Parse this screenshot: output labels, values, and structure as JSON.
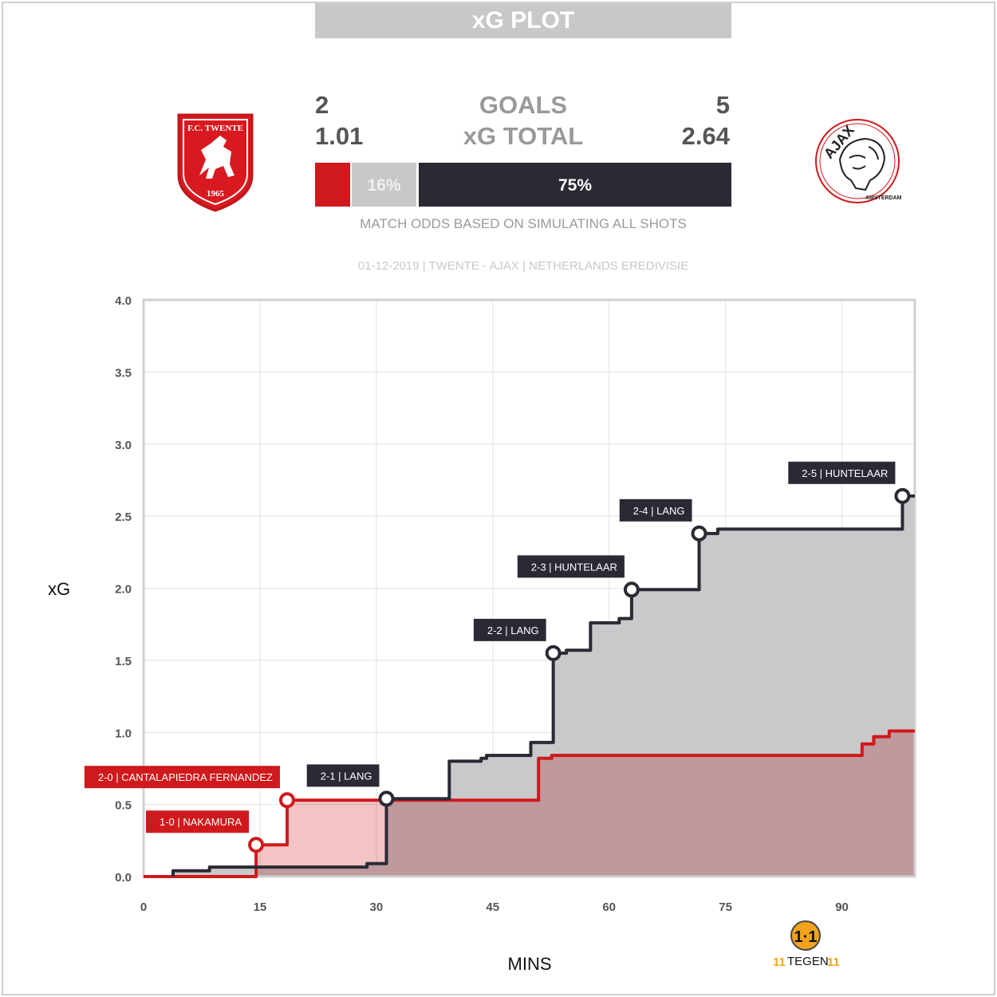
{
  "title": "xG PLOT",
  "home": {
    "name": "TWENTE",
    "goals": "2",
    "xg_total": "1.01",
    "win_pct": 9,
    "color": "#d0191c",
    "logo_text": "F.C. TWENTE 1965"
  },
  "away": {
    "name": "AJAX",
    "goals": "5",
    "xg_total": "2.64",
    "win_pct_label": "75%",
    "win_pct": 75,
    "color": "#2a2a35",
    "logo_text": "AJAX AMSTERDAM"
  },
  "draw": {
    "pct_label": "16%",
    "pct": 16,
    "color": "#c8c8c8"
  },
  "labels": {
    "goals": "GOALS",
    "xg_total": "xG TOTAL",
    "odds_note": "MATCH ODDS BASED ON SIMULATING ALL SHOTS",
    "match_info": "01-12-2019 | TWENTE - AJAX | NETHERLANDS EREDIVISIE"
  },
  "brand": {
    "name": "11TEGEN11",
    "mark": "11"
  },
  "chart_data": {
    "type": "line",
    "step": true,
    "xlabel": "MINS",
    "ylabel": "xG",
    "xlim": [
      0,
      99.4
    ],
    "ylim": [
      0,
      4.0
    ],
    "xticks": [
      0,
      15,
      30,
      45,
      60,
      75,
      90
    ],
    "yticks": [
      "0.0",
      "0.5",
      "1.0",
      "1.5",
      "2.0",
      "2.5",
      "3.0",
      "3.5",
      "4.0"
    ],
    "grid": true,
    "series": [
      {
        "name": "TWENTE",
        "color": "#d0191c",
        "end": 99.4,
        "points": [
          [
            0,
            0
          ],
          [
            14.5,
            0.22
          ],
          [
            18.5,
            0.53
          ],
          [
            50.9,
            0.82
          ],
          [
            52.6,
            0.84
          ],
          [
            92.6,
            0.92
          ],
          [
            94.1,
            0.97
          ],
          [
            96.1,
            1.01
          ]
        ]
      },
      {
        "name": "AJAX",
        "color": "#2a2a35",
        "end": 99.4,
        "points": [
          [
            3.8,
            0.04
          ],
          [
            8.5,
            0.066
          ],
          [
            28.8,
            0.09
          ],
          [
            31.3,
            0.54
          ],
          [
            39.4,
            0.8
          ],
          [
            43.5,
            0.82
          ],
          [
            44.2,
            0.84
          ],
          [
            49.9,
            0.93
          ],
          [
            52.8,
            1.55
          ],
          [
            54.5,
            1.57
          ],
          [
            57.6,
            1.76
          ],
          [
            61.3,
            1.79
          ],
          [
            62.9,
            1.99
          ],
          [
            71.6,
            2.38
          ],
          [
            74.0,
            2.41
          ],
          [
            97.8,
            2.64
          ]
        ]
      }
    ],
    "goals": [
      {
        "team": "TWENTE",
        "minute": 14.5,
        "xg": 0.22,
        "label": "1-0 | NAKAMURA"
      },
      {
        "team": "TWENTE",
        "minute": 18.5,
        "xg": 0.53,
        "label": "2-0 | CANTALAPIEDRA FERNANDEZ"
      },
      {
        "team": "AJAX",
        "minute": 31.3,
        "xg": 0.54,
        "label": "2-1 | LANG"
      },
      {
        "team": "AJAX",
        "minute": 52.8,
        "xg": 1.55,
        "label": "2-2 | LANG"
      },
      {
        "team": "AJAX",
        "minute": 62.9,
        "xg": 1.99,
        "label": "2-3 | HUNTELAAR"
      },
      {
        "team": "AJAX",
        "minute": 71.6,
        "xg": 2.38,
        "label": "2-4 | LANG"
      },
      {
        "team": "AJAX",
        "minute": 97.8,
        "xg": 2.64,
        "label": "2-5 | HUNTELAAR"
      }
    ]
  }
}
